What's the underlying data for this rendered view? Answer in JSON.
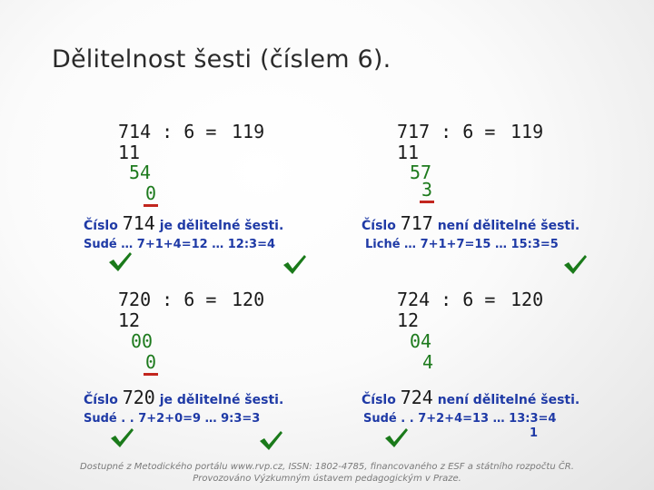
{
  "title": "Dělitelnost šesti (číslem 6).",
  "checkmark_color": "#1a7a1a",
  "blocks": [
    {
      "equation": "714 : 6 =",
      "quotient": "119",
      "steps": [
        "11",
        "54",
        "0"
      ],
      "statement": {
        "prefix": "Číslo",
        "number": "714",
        "suffix": "je dělitelné šesti."
      },
      "rule": "Sudé … 7+1+4=12 … 12:3=4",
      "rule_extra": ""
    },
    {
      "equation": "717 : 6 =",
      "quotient": "119",
      "steps": [
        "11",
        "57",
        "3"
      ],
      "statement": {
        "prefix": "Číslo",
        "number": "717",
        "suffix": "není dělitelné šesti."
      },
      "rule": "Liché … 7+1+7=15 … 15:3=5",
      "rule_extra": ""
    },
    {
      "equation": "720 : 6 =",
      "quotient": "120",
      "steps": [
        "12",
        "00",
        "0"
      ],
      "statement": {
        "prefix": "Číslo",
        "number": "720",
        "suffix": "je dělitelné šesti."
      },
      "rule": "Sudé . . 7+2+0=9 … 9:3=3",
      "rule_extra": ""
    },
    {
      "equation": "724 : 6 =",
      "quotient": "120",
      "steps": [
        "12",
        "04",
        "4"
      ],
      "statement": {
        "prefix": "Číslo",
        "number": "724",
        "suffix": "není dělitelné šesti."
      },
      "rule": "Sudé . . 7+2+4=13 … 13:3=4",
      "rule_extra": "1"
    }
  ],
  "footer": {
    "line1": "Dostupné z Metodického portálu www.rvp.cz, ISSN: 1802-4785, financovaného z ESF a státního rozpočtu ČR.",
    "line2": "Provozováno Výzkumným ústavem pedagogickým v Praze."
  }
}
